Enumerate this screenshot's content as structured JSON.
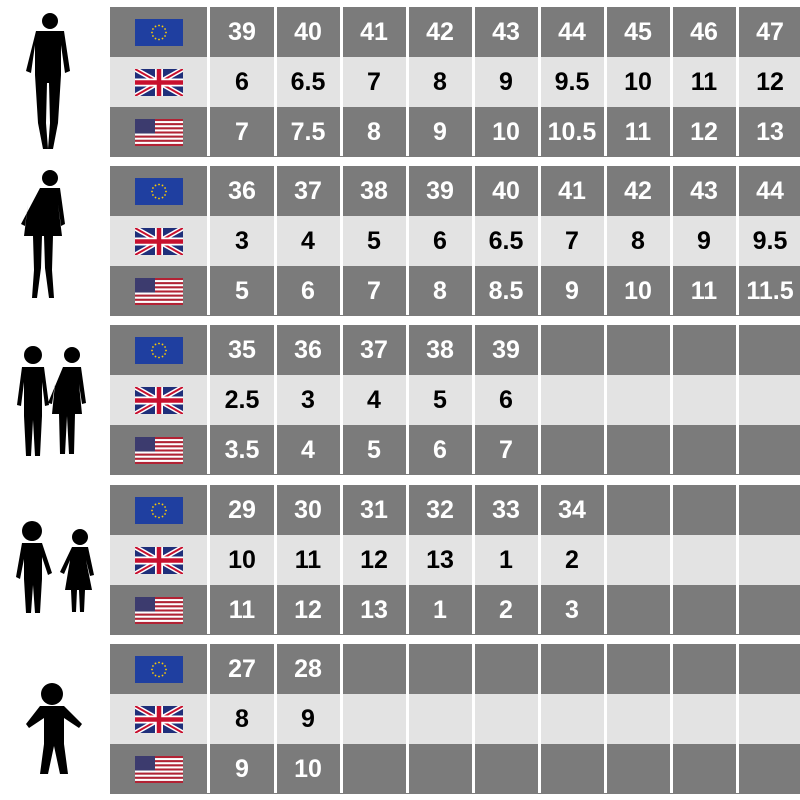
{
  "flags": {
    "eu": "eu-flag-icon",
    "uk": "uk-flag-icon",
    "us": "us-flag-icon"
  },
  "colors": {
    "dark_row": "#7b7b7b",
    "light_row": "#e3e3e3"
  },
  "groups": [
    {
      "label_icon": "man-silhouette-icon",
      "eu": [
        "39",
        "40",
        "41",
        "42",
        "43",
        "44",
        "45",
        "46",
        "47"
      ],
      "uk": [
        "6",
        "6.5",
        "7",
        "8",
        "9",
        "9.5",
        "10",
        "11",
        "12"
      ],
      "us": [
        "7",
        "7.5",
        "8",
        "9",
        "10",
        "10.5",
        "11",
        "12",
        "13"
      ]
    },
    {
      "label_icon": "woman-silhouette-icon",
      "eu": [
        "36",
        "37",
        "38",
        "39",
        "40",
        "41",
        "42",
        "43",
        "44"
      ],
      "uk": [
        "3",
        "4",
        "5",
        "6",
        "6.5",
        "7",
        "8",
        "9",
        "9.5"
      ],
      "us": [
        "5",
        "6",
        "7",
        "8",
        "8.5",
        "9",
        "10",
        "11",
        "11.5"
      ]
    },
    {
      "label_icon": "teen-children-silhouette-icon",
      "eu": [
        "35",
        "36",
        "37",
        "38",
        "39",
        "",
        "",
        "",
        ""
      ],
      "uk": [
        "2.5",
        "3",
        "4",
        "5",
        "6",
        "",
        "",
        "",
        ""
      ],
      "us": [
        "3.5",
        "4",
        "5",
        "6",
        "7",
        "",
        "",
        "",
        ""
      ]
    },
    {
      "label_icon": "children-holding-hands-silhouette-icon",
      "eu": [
        "29",
        "30",
        "31",
        "32",
        "33",
        "34",
        "",
        "",
        ""
      ],
      "uk": [
        "10",
        "11",
        "12",
        "13",
        "1",
        "2",
        "",
        "",
        ""
      ],
      "us": [
        "11",
        "12",
        "13",
        "1",
        "2",
        "3",
        "",
        "",
        ""
      ]
    },
    {
      "label_icon": "toddler-silhouette-icon",
      "eu": [
        "27",
        "28",
        "",
        "",
        "",
        "",
        "",
        "",
        ""
      ],
      "uk": [
        "8",
        "9",
        "",
        "",
        "",
        "",
        "",
        "",
        ""
      ],
      "us": [
        "9",
        "10",
        "",
        "",
        "",
        "",
        "",
        "",
        ""
      ]
    }
  ]
}
